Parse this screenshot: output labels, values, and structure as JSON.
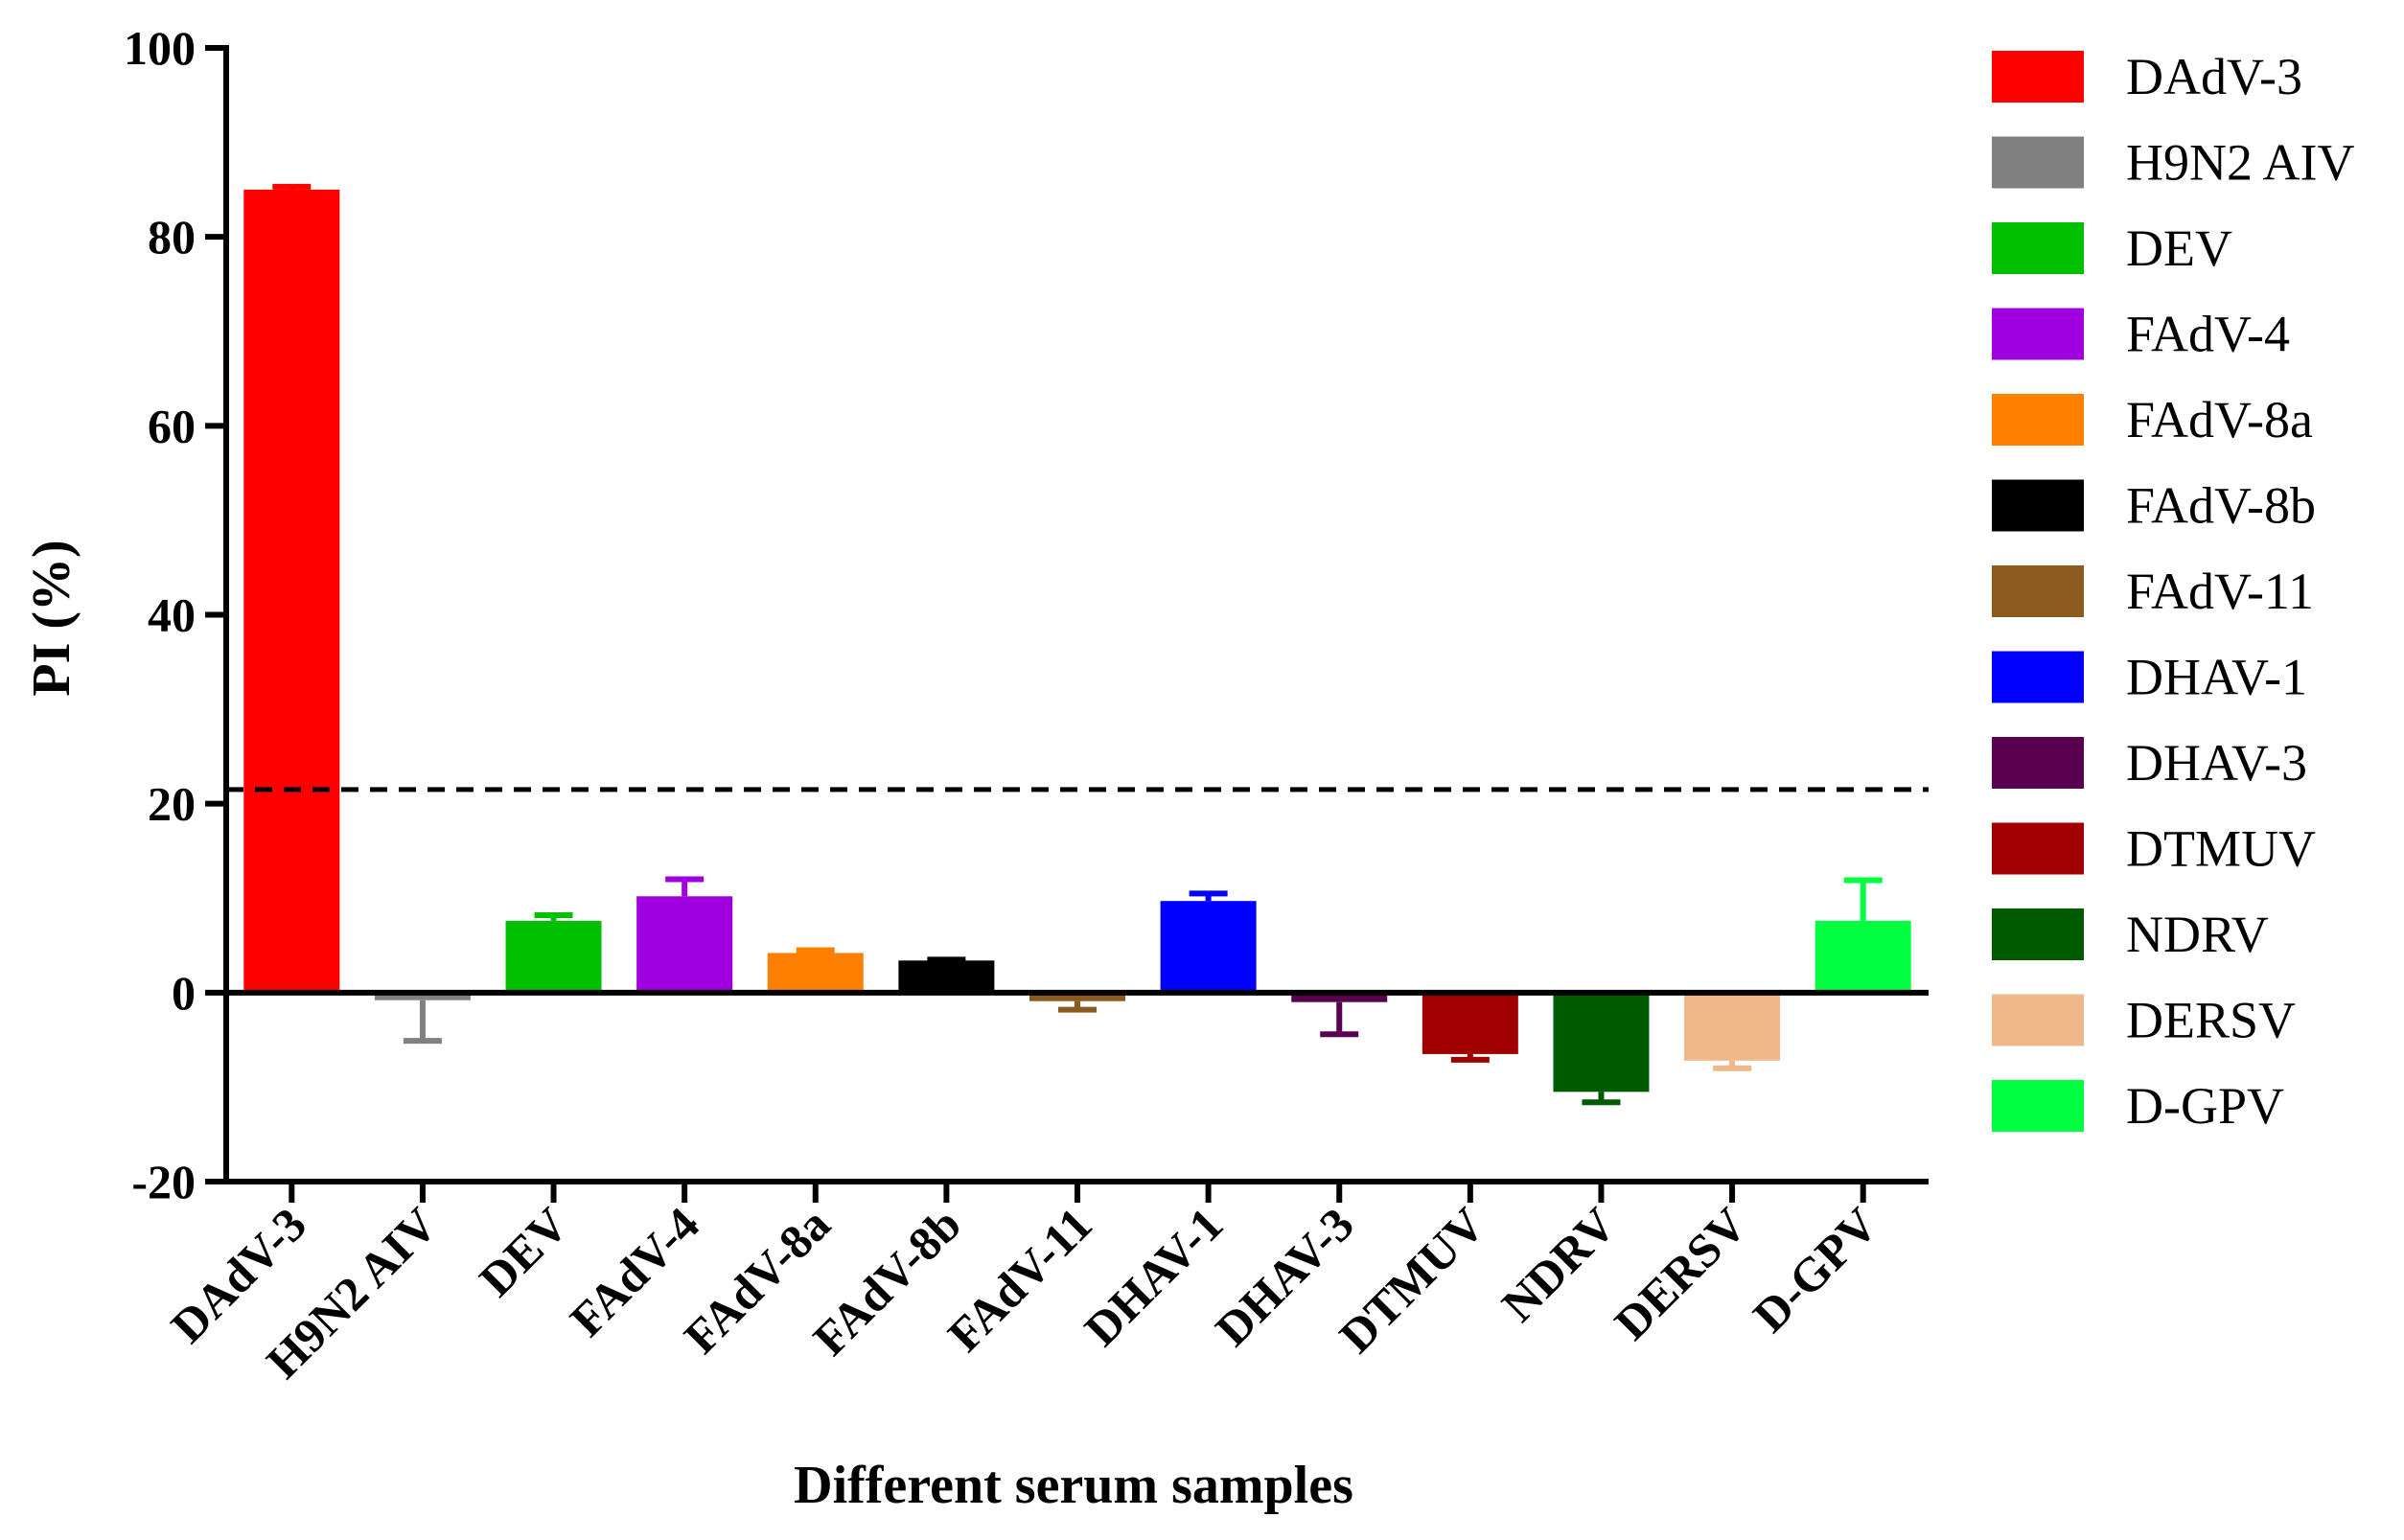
{
  "chart_data": {
    "type": "bar",
    "title": "",
    "xlabel": "Different serum samples",
    "ylabel": "PI (%)",
    "ylim": [
      -20,
      100
    ],
    "yticks": [
      -20,
      0,
      20,
      40,
      60,
      80,
      100
    ],
    "ytick_labels": [
      "-20",
      "0",
      "20",
      "40",
      "60",
      "80",
      "100"
    ],
    "threshold": 21.5,
    "categories": [
      "DAdV-3",
      "H9N2 AIV",
      "DEV",
      "FAdV-4",
      "FAdV-8a",
      "FAdV-8b",
      "FAdV-11",
      "DHAV-1",
      "DHAV-3",
      "DTMUV",
      "NDRV",
      "DERSV",
      "D-GPV"
    ],
    "values": [
      85,
      -0.8,
      7.6,
      10.2,
      4.2,
      3.4,
      -0.9,
      9.7,
      -1.0,
      -6.5,
      -10.5,
      -7.2,
      7.6
    ],
    "errors": [
      0.3,
      4.3,
      0.6,
      1.8,
      0.3,
      0.1,
      0.9,
      0.8,
      3.4,
      0.6,
      1.1,
      0.8,
      4.3
    ],
    "colors": [
      "#ff0000",
      "#808080",
      "#00c000",
      "#a000e0",
      "#ff8000",
      "#000000",
      "#8b5a1e",
      "#0000ff",
      "#5a0050",
      "#a00000",
      "#005a00",
      "#f0b888",
      "#00ff40"
    ],
    "legend": {
      "position": "right",
      "entries": [
        "DAdV-3",
        "H9N2 AIV",
        "DEV",
        "FAdV-4",
        "FAdV-8a",
        "FAdV-8b",
        "FAdV-11",
        "DHAV-1",
        "DHAV-3",
        "DTMUV",
        "NDRV",
        "DERSV",
        "D-GPV"
      ]
    }
  }
}
